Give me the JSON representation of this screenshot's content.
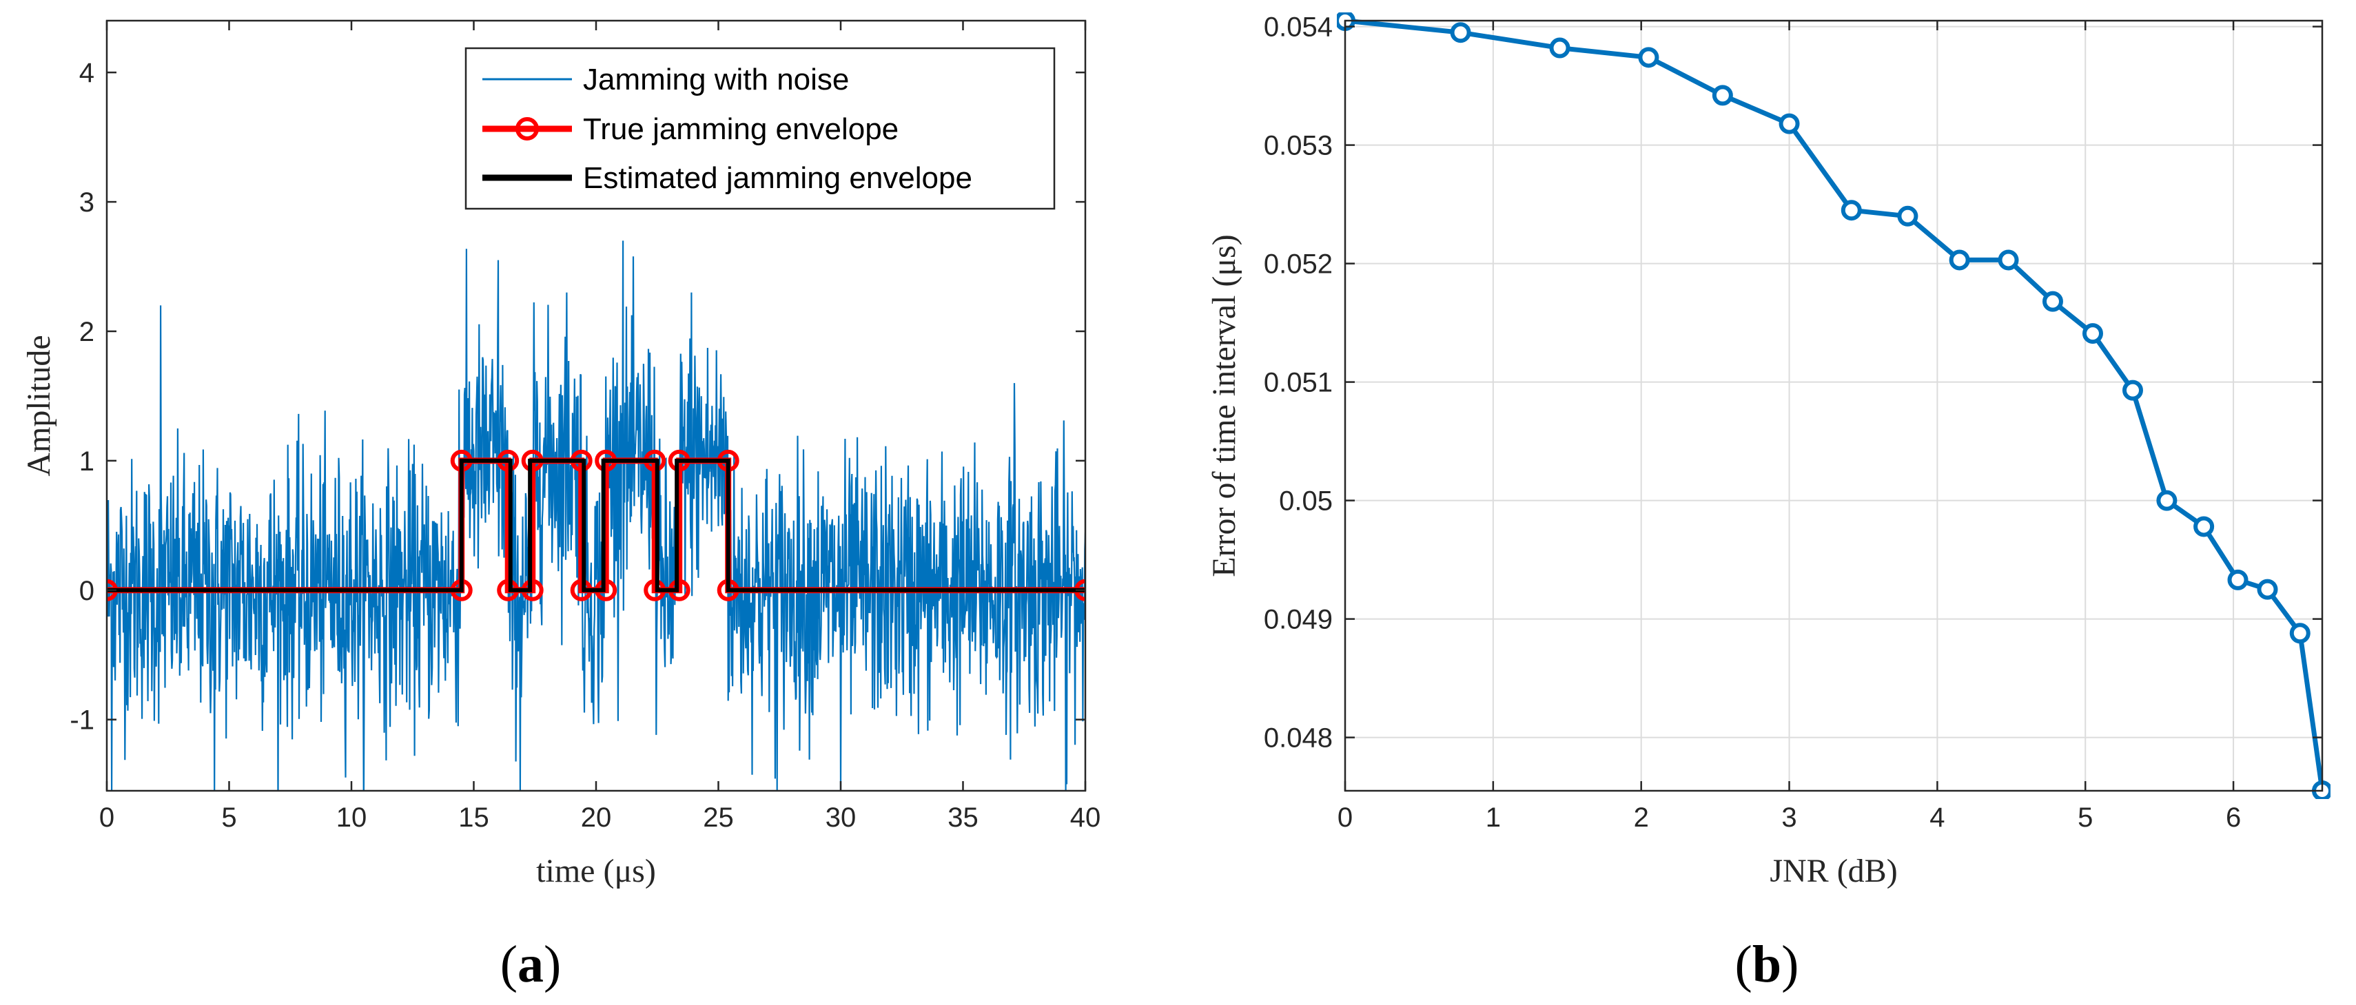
{
  "chart_data": [
    {
      "type": "line",
      "caption": {
        "open": "(",
        "letter": "a",
        "close": ")"
      },
      "xlabel": "time (μs)",
      "ylabel": "Amplitude",
      "xlim": [
        0,
        40
      ],
      "ylim": [
        -1.55,
        4.4
      ],
      "xticks": [
        "0",
        "5",
        "10",
        "15",
        "20",
        "25",
        "30",
        "35",
        "40"
      ],
      "yticks": [
        "-1",
        "0",
        "1",
        "2",
        "3",
        "4"
      ],
      "grid": false,
      "legend_position": "top-right",
      "series": [
        {
          "name": "Jamming with noise",
          "color": "#0072bd",
          "style": "noisy signal, standard deviation about 0.5 around the envelope",
          "peaks": [
            {
              "x": 2.2,
              "y": 2.2
            },
            {
              "x": 14.4,
              "y": 1.55
            },
            {
              "x": 16.0,
              "y": 2.55
            },
            {
              "x": 18.8,
              "y": 2.3
            },
            {
              "x": 21.1,
              "y": 2.7
            },
            {
              "x": 23.9,
              "y": 2.3
            },
            {
              "x": 37.1,
              "y": 1.6
            }
          ],
          "troughs": [
            {
              "x": 0.2,
              "y": -1.55
            },
            {
              "x": 4.4,
              "y": -1.55
            },
            {
              "x": 16.9,
              "y": -1.55
            },
            {
              "x": 27.4,
              "y": -1.55
            },
            {
              "x": 30.0,
              "y": -1.55
            },
            {
              "x": 39.2,
              "y": -1.55
            }
          ]
        },
        {
          "name": "True jamming envelope",
          "color": "#ff0000",
          "marker": "circle",
          "x": [
            0,
            14.5,
            14.5,
            16.4,
            16.4,
            17.4,
            17.4,
            19.4,
            19.4,
            20.4,
            20.4,
            22.4,
            22.4,
            23.4,
            23.4,
            25.4,
            25.4,
            40
          ],
          "y": [
            0,
            0,
            1,
            1,
            0,
            0,
            1,
            1,
            0,
            0,
            1,
            1,
            0,
            0,
            1,
            1,
            0,
            0
          ]
        },
        {
          "name": "Estimated jamming envelope",
          "color": "#000000",
          "x": [
            0,
            14.5,
            14.5,
            16.5,
            16.5,
            17.3,
            17.3,
            19.5,
            19.5,
            20.3,
            20.3,
            22.5,
            22.5,
            23.3,
            23.3,
            25.4,
            25.4,
            40
          ],
          "y": [
            0,
            0,
            1,
            1,
            0,
            0,
            1,
            1,
            0,
            0,
            1,
            1,
            0,
            0,
            1,
            1,
            0,
            0
          ]
        }
      ]
    },
    {
      "type": "line",
      "caption": {
        "open": "(",
        "letter": "b",
        "close": ")"
      },
      "xlabel": "JNR (dB)",
      "ylabel": "Error of time interval (μs)",
      "xlim": [
        0,
        6.6
      ],
      "ylim": [
        0.04755,
        0.05405
      ],
      "xticks": [
        "0",
        "1",
        "2",
        "3",
        "4",
        "5",
        "6"
      ],
      "yticks": [
        "0.048",
        "0.049",
        "0.05",
        "0.051",
        "0.052",
        "0.053",
        "0.054"
      ],
      "grid": true,
      "series": [
        {
          "color": "#0072bd",
          "marker": "circle",
          "x": [
            0,
            0.78,
            1.45,
            2.05,
            2.55,
            3.0,
            3.42,
            3.8,
            4.15,
            4.48,
            4.78,
            5.05,
            5.32,
            5.55,
            5.8,
            6.03,
            6.23,
            6.45,
            6.6
          ],
          "y": [
            0.05405,
            0.05395,
            0.05382,
            0.05374,
            0.05342,
            0.05318,
            0.05245,
            0.0524,
            0.05203,
            0.05203,
            0.05168,
            0.05141,
            0.05093,
            0.05,
            0.04978,
            0.04933,
            0.04925,
            0.04888,
            0.04755
          ]
        }
      ]
    }
  ]
}
